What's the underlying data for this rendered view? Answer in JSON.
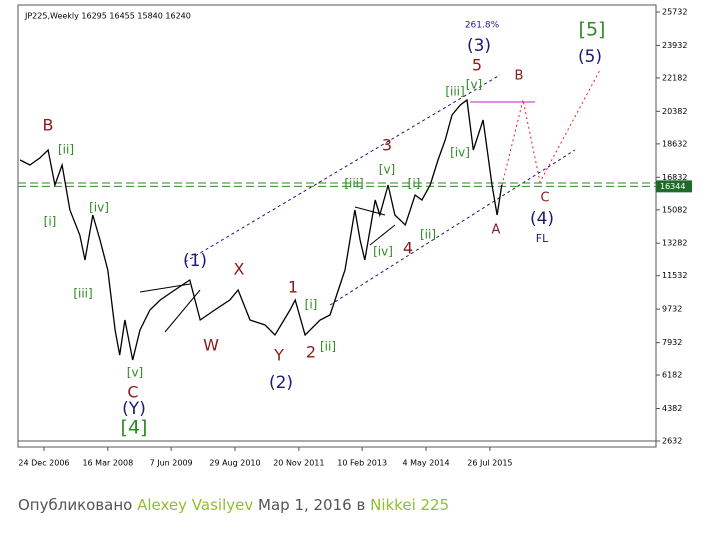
{
  "chart_data": {
    "type": "line",
    "title": "JP225,Weekly  16295 16455 15840 16240",
    "x": [
      2006.52,
      2006.71,
      2006.9,
      2007.06,
      2007.19,
      2007.33,
      2007.48,
      2007.67,
      2007.77,
      2007.92,
      2008.06,
      2008.21,
      2008.35,
      2008.44,
      2008.54,
      2008.69,
      2008.83,
      2009.02,
      2009.22,
      2009.5,
      2009.79,
      2009.99,
      2010.27,
      2010.56,
      2010.72,
      2010.95,
      2011.24,
      2011.43,
      2011.72,
      2011.82,
      2012.01,
      2012.3,
      2012.49,
      2012.78,
      2012.97,
      2013.07,
      2013.16,
      2013.36,
      2013.45,
      2013.61,
      2013.74,
      2013.94,
      2014.13,
      2014.26,
      2014.42,
      2014.57,
      2014.71,
      2014.84,
      2015.0,
      2015.13,
      2015.25,
      2015.44,
      2015.61,
      2015.71,
      2015.8
    ],
    "series": [
      {
        "color": "#000000",
        "values": [
          17762,
          17493,
          17870,
          18301,
          16416,
          17493,
          15070,
          13723,
          12377,
          14800,
          13454,
          11839,
          8608,
          7261,
          9146,
          6992,
          8608,
          9685,
          10223,
          10762,
          11300,
          9146,
          9685,
          10223,
          10762,
          9146,
          8877,
          8338,
          9685,
          10223,
          8338,
          9146,
          9415,
          11839,
          15070,
          13454,
          12377,
          15608,
          14800,
          16416,
          14800,
          14262,
          15877,
          15608,
          16416,
          17762,
          18839,
          20185,
          20724,
          20993,
          18301,
          19916,
          16416,
          14800,
          16416
        ]
      }
    ],
    "last_price": 16344,
    "xlim": [
      2006.48,
      2018.77
    ],
    "xticks": [
      {
        "value": 2006.98,
        "label": "24 Dec 2006"
      },
      {
        "value": 2008.21,
        "label": "16 Mar 2008"
      },
      {
        "value": 2009.43,
        "label": "7 Jun 2009"
      },
      {
        "value": 2010.66,
        "label": "29 Aug 2010"
      },
      {
        "value": 2011.89,
        "label": "20 Nov 2011"
      },
      {
        "value": 2013.11,
        "label": "10 Feb 2013"
      },
      {
        "value": 2014.34,
        "label": "4 May 2014"
      },
      {
        "value": 2015.57,
        "label": "26 Jul 2015"
      }
    ],
    "ylim": [
      2309,
      26109
    ],
    "yticks": [
      2632,
      4382,
      6182,
      7932,
      9732,
      11532,
      13282,
      15082,
      16832,
      18632,
      20382,
      22182,
      23932,
      25732
    ],
    "annotations": [
      "261.8%",
      "(3)",
      "5",
      "[v]",
      "[iii]",
      "B",
      "[5]",
      "(5)",
      "B",
      "[ii]",
      "[i]",
      "[iv]",
      "[iii]",
      "[v]",
      "C",
      "(Y)",
      "[4]",
      "(1)",
      "X",
      "W",
      "1",
      "[i]",
      "Y",
      "2",
      "[ii]",
      "(2)",
      "3",
      "[v]",
      "[iii]",
      "[iv]",
      "4",
      "[i]",
      "[ii]",
      "[iv]",
      "A",
      "C",
      "(4)",
      "FL"
    ]
  },
  "footer": {
    "prefix": "Опубликовано",
    "author": "Alexey Vasilyev",
    "date": "Мар 1, 2016",
    "joiner": "в",
    "symbol": "Nikkei 225"
  }
}
